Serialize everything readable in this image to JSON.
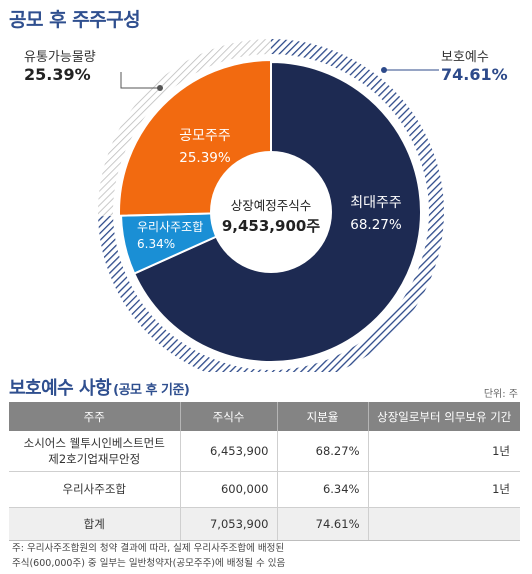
{
  "chart_title": "공모 후 주주구성",
  "chart_data": {
    "type": "pie",
    "center_label": "상장예정주식수",
    "center_value": "9,453,900주",
    "outer_ring": [
      {
        "name": "보호예수",
        "value": 74.61,
        "value_label": "74.61%",
        "pattern": "hatch-blue"
      },
      {
        "name": "유통가능물량",
        "value": 25.39,
        "value_label": "25.39%",
        "pattern": "hatch-gray"
      }
    ],
    "inner_slices": [
      {
        "name": "최대주주",
        "value": 68.27,
        "value_label": "68.27%",
        "color": "#1d2a52"
      },
      {
        "name": "우리사주조합",
        "value": 6.34,
        "value_label": "6.34%",
        "color": "#1a8fd5"
      },
      {
        "name": "공모주주",
        "value": 25.39,
        "value_label": "25.39%",
        "color": "#f26a10"
      }
    ]
  },
  "callouts": {
    "left": {
      "name": "유통가능물량",
      "value": "25.39%",
      "color": "#222222"
    },
    "right": {
      "name": "보호예수",
      "value": "74.61%",
      "color": "#2d4a8a"
    }
  },
  "section_title": "보호예수 사항",
  "section_subtitle": "(공모 후 기준)",
  "unit_label": "단위: 주",
  "table": {
    "headers": [
      "주주",
      "주식수",
      "지분율",
      "상장일로부터 의무보유 기간"
    ],
    "rows": [
      {
        "holder_line1": "소시어스 웰투시인베스트먼트",
        "holder_line2": "제2호기업재무안정",
        "shares": "6,453,900",
        "ratio": "68.27%",
        "period": "1년"
      },
      {
        "holder_line1": "우리사주조합",
        "holder_line2": "",
        "shares": "600,000",
        "ratio": "6.34%",
        "period": "1년"
      }
    ],
    "total": {
      "label": "합계",
      "shares": "7,053,900",
      "ratio": "74.61%",
      "period": ""
    }
  },
  "footnote": {
    "line1": "주: 우리사주조합원의 청약 결과에 따라, 실제 우리사주조합에 배정된",
    "line2": "주식(600,000주) 중 일부는 일반청약자(공모주주)에 배정될 수 있음"
  },
  "colors": {
    "title": "#2f4f8f",
    "major": "#1d2a52",
    "esop": "#1a8fd5",
    "public": "#f26a10",
    "hatch_blue": "#2d4a8a",
    "hatch_gray": "#b4b4b4"
  }
}
